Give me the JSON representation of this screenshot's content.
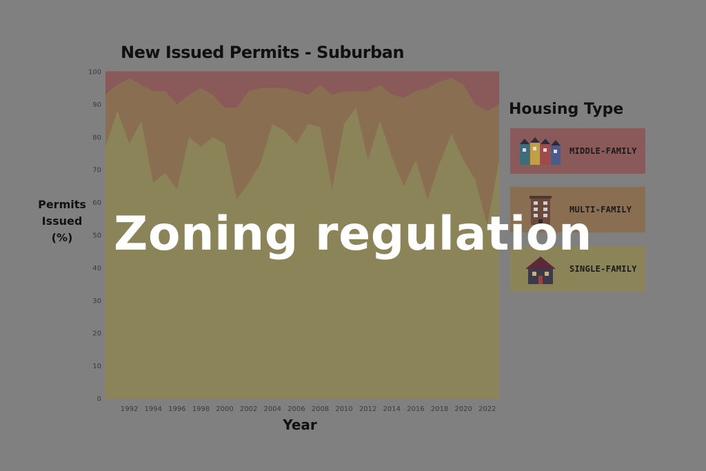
{
  "chart_data": {
    "type": "area",
    "stacked": true,
    "normalized_percent": true,
    "title": "New Issued Permits - Suburban",
    "xlabel": "Year",
    "ylabel": [
      "Permits",
      "Issued",
      "(%)"
    ],
    "xlim": [
      1990,
      2023
    ],
    "ylim": [
      0,
      100
    ],
    "yticks": [
      0,
      10,
      20,
      30,
      40,
      50,
      60,
      70,
      80,
      90,
      100
    ],
    "xticks": [
      1992,
      1994,
      1996,
      1998,
      2000,
      2002,
      2004,
      2006,
      2008,
      2010,
      2012,
      2014,
      2016,
      2018,
      2020,
      2022
    ],
    "x": [
      1990,
      1991,
      1992,
      1993,
      1994,
      1995,
      1996,
      1997,
      1998,
      1999,
      2000,
      2001,
      2002,
      2003,
      2004,
      2005,
      2006,
      2007,
      2008,
      2009,
      2010,
      2011,
      2012,
      2013,
      2014,
      2015,
      2016,
      2017,
      2018,
      2019,
      2020,
      2021,
      2022,
      2023
    ],
    "series": [
      {
        "name": "Single-family",
        "color": "#8a8458",
        "values": [
          77,
          88,
          78,
          85,
          66,
          69,
          64,
          80,
          77,
          80,
          78,
          61,
          66,
          72,
          84,
          82,
          78,
          84,
          83,
          64,
          84,
          89,
          73,
          85,
          74,
          65,
          73,
          61,
          72,
          81,
          73,
          67,
          53,
          73
        ]
      },
      {
        "name": "Multi-family",
        "color": "#8a6e52",
        "values": [
          16,
          8,
          20,
          11,
          28,
          25,
          26,
          13,
          18,
          13,
          11,
          28,
          28,
          23,
          11,
          13,
          16,
          9,
          13,
          29,
          10,
          5,
          21,
          11,
          19,
          27,
          21,
          34,
          25,
          17,
          23,
          23,
          35,
          17
        ]
      },
      {
        "name": "Middle-family",
        "color": "#8a5a5a",
        "values": [
          7,
          4,
          2,
          4,
          6,
          6,
          10,
          7,
          5,
          7,
          11,
          11,
          6,
          5,
          5,
          5,
          6,
          7,
          4,
          7,
          6,
          6,
          6,
          4,
          7,
          8,
          6,
          5,
          3,
          2,
          4,
          10,
          12,
          10
        ]
      }
    ],
    "legend": {
      "title": "Housing Type",
      "placement": "right",
      "items": [
        {
          "label": "MIDDLE-FAMILY",
          "color": "#8a5a5a",
          "icon": "row-houses-icon"
        },
        {
          "label": "MULTI-FAMILY",
          "color": "#8a6e52",
          "icon": "apartment-building-icon"
        },
        {
          "label": "SINGLE-FAMILY",
          "color": "#8a8458",
          "icon": "single-house-icon"
        }
      ]
    },
    "grid": false
  },
  "overlay": {
    "text": "Zoning regulation",
    "color": "#ffffff"
  },
  "background": "#808080"
}
